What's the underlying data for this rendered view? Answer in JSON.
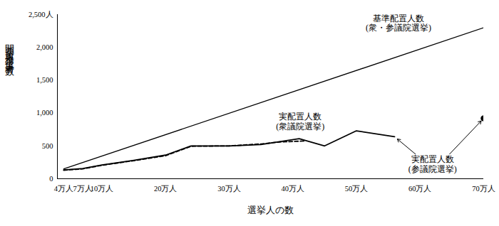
{
  "chart_data": {
    "type": "line",
    "x_label": "選挙人の数",
    "y_label": "開票所事務従事者数",
    "xlim": [
      30000,
      700000
    ],
    "xticks": [
      {
        "value": 40000,
        "label": "4万人"
      },
      {
        "value": 70000,
        "label": "7万人"
      },
      {
        "value": 100000,
        "label": "10万人"
      },
      {
        "value": 200000,
        "label": "20万人"
      },
      {
        "value": 300000,
        "label": "30万人"
      },
      {
        "value": 400000,
        "label": "40万人"
      },
      {
        "value": 500000,
        "label": "50万人"
      },
      {
        "value": 600000,
        "label": "60万人"
      },
      {
        "value": 700000,
        "label": "70万人"
      }
    ],
    "ylim": [
      0,
      2500
    ],
    "yticks": [
      0,
      500,
      {
        "value": 1000,
        "label": "1,000"
      },
      {
        "value": 1500,
        "label": "1,500"
      },
      {
        "value": 2000,
        "label": "2,000"
      },
      {
        "value": 2500,
        "label": "2,500人"
      }
    ],
    "grid": false,
    "series": [
      {
        "name": "基準配置人数\n(衆・参議院選挙)",
        "color": "#000000",
        "line_style": "solid",
        "x": [
          40000,
          700000
        ],
        "values": [
          150,
          2300
        ]
      },
      {
        "name": "実配置人数\n(衆議院選挙)",
        "color": "#000000",
        "line_style": "dashed",
        "x": [
          40000,
          70000,
          100000,
          150000,
          200000,
          240000,
          300000,
          350000,
          380000,
          420000
        ],
        "values": [
          130,
          150,
          205,
          275,
          350,
          495,
          500,
          530,
          560,
          575
        ]
      },
      {
        "name": "実配置人数\n(参議院選挙)",
        "color": "#000000",
        "line_style": "solid",
        "x": [
          40000,
          70000,
          100000,
          150000,
          200000,
          240000,
          300000,
          350000,
          410000,
          450000,
          500000,
          560000
        ],
        "values": [
          135,
          155,
          210,
          280,
          360,
          500,
          500,
          520,
          610,
          500,
          730,
          640
        ]
      },
      {
        "name": "実配置人数\n(参議院選挙)",
        "color": "#000000",
        "type": "scatter",
        "marker": "circle",
        "x": [
          700000
        ],
        "values": [
          920
        ]
      }
    ]
  }
}
